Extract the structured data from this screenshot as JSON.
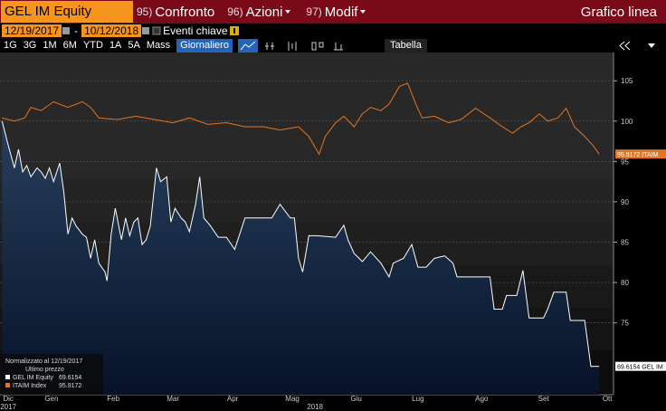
{
  "toolbar": {
    "ticker": "GEL IM Equity",
    "menus": [
      {
        "code": "95)",
        "label": "Confronto"
      },
      {
        "code": "96)",
        "label": "Azioni"
      },
      {
        "code": "97)",
        "label": "Modif"
      }
    ],
    "view": "Grafico linea"
  },
  "range": {
    "start": "12/19/2017",
    "separator": "-",
    "end": "10/12/2018",
    "events": "Eventi chiave"
  },
  "periods": [
    "1G",
    "3G",
    "1M",
    "6M",
    "YTD",
    "1A",
    "5A",
    "Mass"
  ],
  "frequency": "Giornaliero",
  "table_button": "Tabella",
  "chart_data": {
    "type": "line",
    "xlim": [
      0,
      298
    ],
    "ylim": [
      66.1,
      108.5
    ],
    "yticks": [
      75,
      80,
      85,
      90,
      95,
      100,
      105
    ],
    "grid": true,
    "xticks": [
      {
        "value": 4,
        "label": "Dic"
      },
      {
        "value": 25,
        "label": "Gen"
      },
      {
        "value": 55,
        "label": "Feb"
      },
      {
        "value": 84,
        "label": "Mar"
      },
      {
        "value": 113,
        "label": "Apr"
      },
      {
        "value": 142,
        "label": "Mag"
      },
      {
        "value": 173,
        "label": "Giu"
      },
      {
        "value": 203,
        "label": "Lug"
      },
      {
        "value": 234,
        "label": "Ago"
      },
      {
        "value": 264,
        "label": "Set"
      },
      {
        "value": 295,
        "label": "Ott"
      }
    ],
    "year_ticks": [
      {
        "value": 4,
        "label": "2017"
      },
      {
        "value": 153,
        "label": "2018"
      }
    ],
    "legend": {
      "title": "Normalizzato al 12/19/2017",
      "subtitle": "Ultimo prezzo",
      "position": "lower left"
    },
    "series": [
      {
        "name": "GEL IM Equity",
        "short_name": "GEL IM",
        "color": "#ffffff",
        "area": true,
        "x": [
          1,
          4,
          7,
          9,
          11,
          13,
          15,
          18,
          20,
          22,
          24,
          26,
          29,
          31,
          33,
          35,
          37,
          40,
          42,
          44,
          46,
          48,
          51,
          52,
          54,
          56,
          59,
          61,
          63,
          65,
          67,
          69,
          71,
          73,
          76,
          78,
          81,
          83,
          85,
          88,
          90,
          92,
          95,
          97,
          99,
          102,
          106,
          110,
          114,
          119,
          123,
          128,
          132,
          136,
          141,
          143,
          145,
          147,
          150,
          154,
          163,
          167,
          169,
          172,
          176,
          180,
          185,
          189,
          191,
          196,
          200,
          203,
          207,
          211,
          216,
          220,
          222,
          229,
          238,
          240,
          244,
          246,
          251,
          254,
          257,
          264,
          266,
          269,
          275,
          277,
          284,
          287,
          291
        ],
        "values": [
          100,
          97,
          94.2,
          96.5,
          93.7,
          94.5,
          93.1,
          94.2,
          93.7,
          92.9,
          94.2,
          92.5,
          94.8,
          91.2,
          86,
          88,
          87,
          86,
          85.6,
          83,
          85.3,
          82.4,
          81.3,
          80.2,
          86,
          89.2,
          85.3,
          88,
          85.8,
          87.5,
          88,
          84.7,
          85.3,
          87,
          94.2,
          92.5,
          93.1,
          87.5,
          89.2,
          88,
          87.5,
          86.3,
          89.7,
          93.1,
          88,
          87.1,
          85.6,
          85.6,
          84.1,
          88,
          88,
          88,
          88,
          89.7,
          88,
          88,
          83,
          81.3,
          85.8,
          85.8,
          85.6,
          87.1,
          85.3,
          83.6,
          82.6,
          83.8,
          82.4,
          80.7,
          82.4,
          83,
          84.7,
          81.9,
          81.9,
          83,
          83.3,
          82.4,
          80.7,
          80.7,
          80.7,
          76.7,
          76.7,
          78.4,
          78.4,
          81.5,
          75.6,
          75.6,
          76.7,
          78.8,
          78.8,
          75.3,
          75.3,
          69.6,
          69.6154
        ]
      },
      {
        "name": "ITAIM Index",
        "short_name": "ITAIM",
        "color": "#e8741e",
        "area": false,
        "x": [
          1,
          7,
          12,
          15,
          20,
          26,
          33,
          40,
          44,
          48,
          57,
          66,
          75,
          84,
          92,
          101,
          110,
          119,
          128,
          136,
          145,
          150,
          155,
          158,
          163,
          167,
          172,
          176,
          180,
          185,
          189,
          194,
          198,
          202,
          205,
          211,
          218,
          224,
          231,
          238,
          244,
          249,
          253,
          257,
          262,
          266,
          271,
          275,
          279,
          284,
          288,
          291
        ],
        "values": [
          100.4,
          100,
          100.4,
          101.7,
          101.3,
          102.4,
          101.7,
          102.4,
          101.7,
          100.4,
          100.2,
          100.6,
          100.2,
          99.8,
          100.4,
          99.6,
          99.8,
          99.3,
          99.3,
          98.9,
          99.3,
          98.1,
          95.9,
          98.1,
          99.8,
          100.6,
          99.3,
          100.9,
          101.7,
          101.3,
          102.1,
          104.3,
          104.7,
          102.1,
          100.4,
          100.6,
          99.8,
          100.2,
          101.6,
          100.4,
          99.3,
          98.5,
          99.3,
          99.8,
          100.9,
          100,
          100.4,
          101.6,
          99.3,
          98.1,
          97,
          95.9172
        ]
      }
    ]
  }
}
